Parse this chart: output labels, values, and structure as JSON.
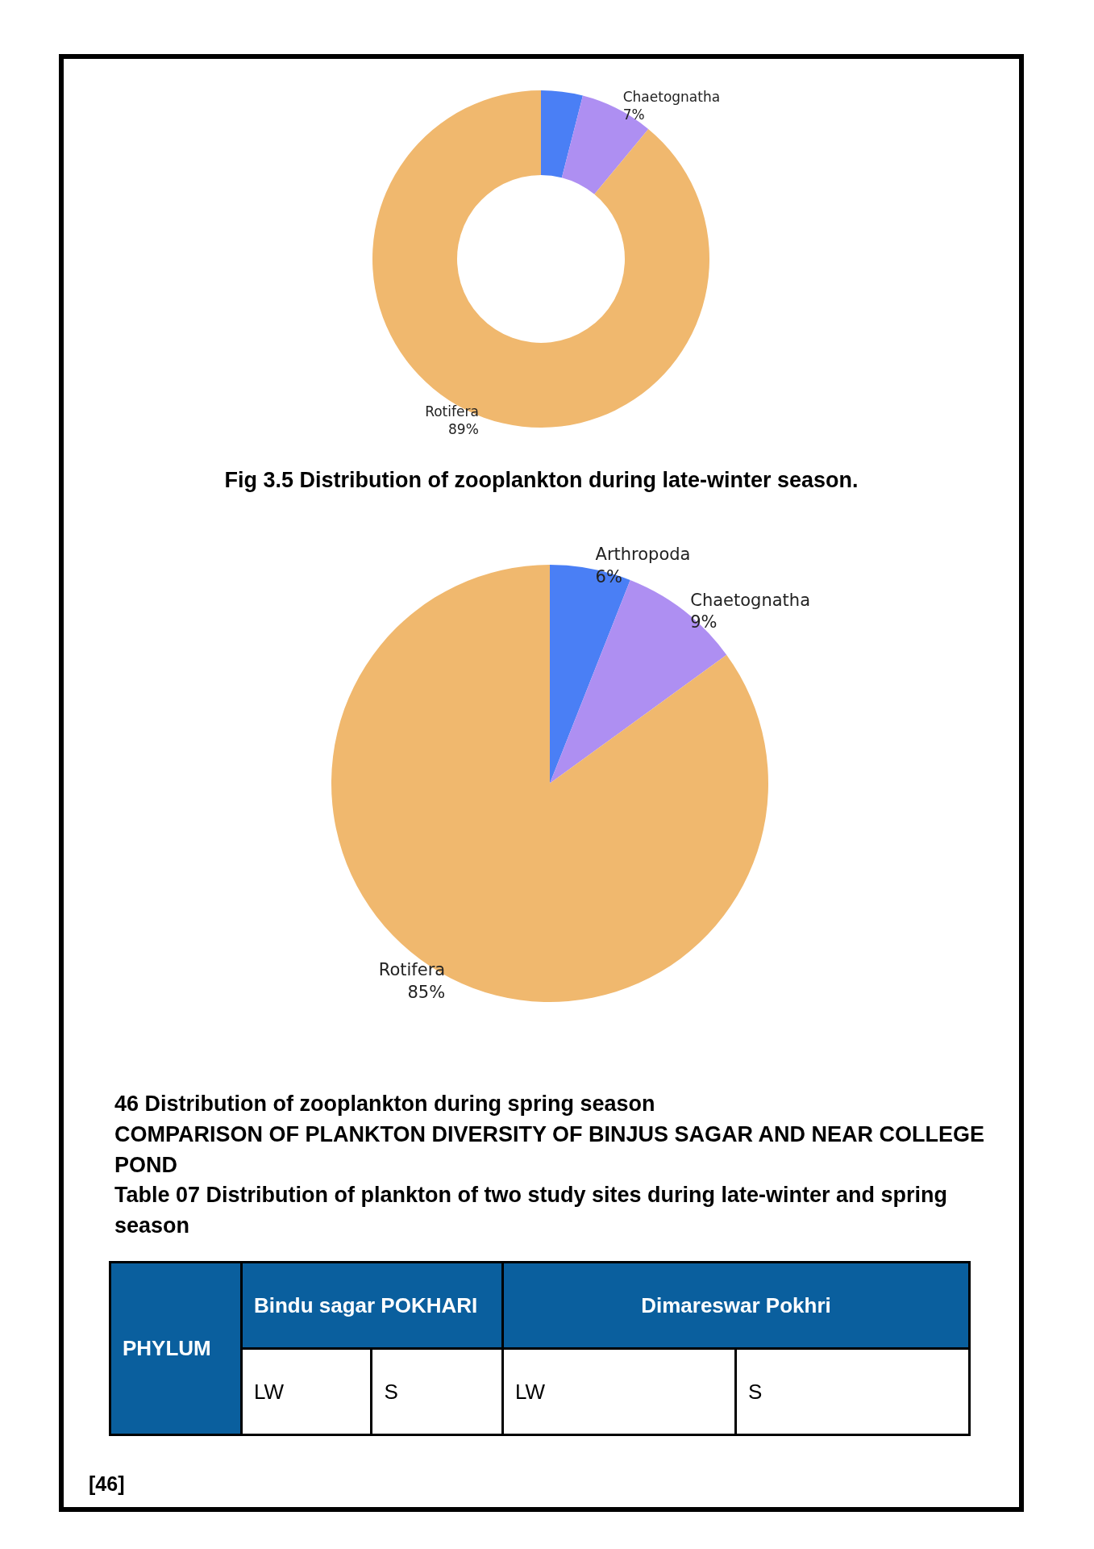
{
  "chart_data": [
    {
      "type": "donut",
      "title": "Fig 3.5 Distribution of zooplankton during late-winter season.",
      "categories": [
        null,
        "Chaetognatha",
        "Rotifera"
      ],
      "values": [
        4,
        7,
        89
      ],
      "colors": [
        "#4a7ff5",
        "#ae8ff2",
        "#f0b86e"
      ],
      "value_labels": [
        null,
        "7%",
        "89%"
      ],
      "legend": false
    },
    {
      "type": "pie",
      "title": "46 Distribution of zooplankton during spring season",
      "categories": [
        "Arthropoda",
        "Chaetognatha",
        "Rotifera"
      ],
      "values": [
        6,
        9,
        85
      ],
      "colors": [
        "#4a7ff5",
        "#ae8ff2",
        "#f0b86e"
      ],
      "value_labels": [
        "6%",
        "9%",
        "85%"
      ],
      "legend": false
    },
    {
      "type": "other",
      "title": "COMPARISON OF PLANKTON DIVERSITY OF BINJUS SAGAR AND NEAR COLLEGE POND",
      "subtitle": "Table 07 Distribution of plankton of two study sites during late-winter and spring season",
      "annotations": [
        "PHYLUM",
        "Bindu sagar POKHARI",
        "Dimareswar Pokhri",
        "LW",
        "S",
        "LW",
        "S",
        "[46]"
      ]
    }
  ]
}
